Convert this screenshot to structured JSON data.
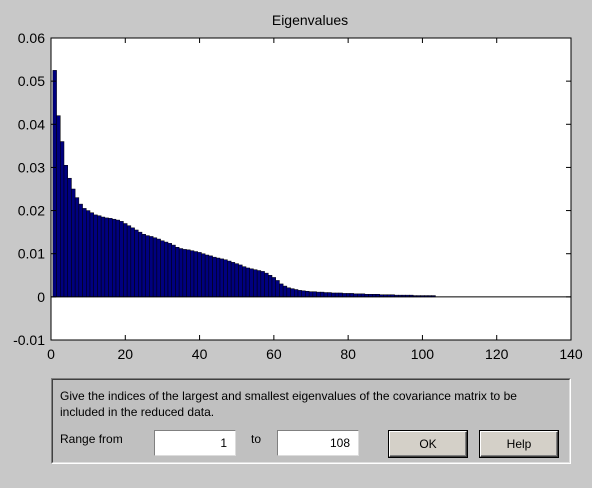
{
  "chart_data": {
    "type": "bar",
    "title": "Eigenvalues",
    "xlabel": "",
    "ylabel": "",
    "xlim": [
      0,
      140
    ],
    "ylim": [
      -0.01,
      0.06
    ],
    "xticks": [
      "0",
      "20",
      "40",
      "60",
      "80",
      "100",
      "120",
      "140"
    ],
    "yticks": [
      "-0.01",
      "0",
      "0.01",
      "0.02",
      "0.03",
      "0.04",
      "0.05",
      "0.06"
    ],
    "bar_color": "#00007f",
    "x": [
      1,
      2,
      3,
      4,
      5,
      6,
      7,
      8,
      9,
      10,
      11,
      12,
      13,
      14,
      15,
      16,
      17,
      18,
      19,
      20,
      21,
      22,
      23,
      24,
      25,
      26,
      27,
      28,
      29,
      30,
      31,
      32,
      33,
      34,
      35,
      36,
      37,
      38,
      39,
      40,
      41,
      42,
      43,
      44,
      45,
      46,
      47,
      48,
      49,
      50,
      51,
      52,
      53,
      54,
      55,
      56,
      57,
      58,
      59,
      60,
      61,
      62,
      63,
      64,
      65,
      66,
      67,
      68,
      69,
      70,
      71,
      72,
      73,
      74,
      75,
      76,
      77,
      78,
      79,
      80,
      81,
      82,
      83,
      84,
      85,
      86,
      87,
      88,
      89,
      90,
      91,
      92,
      93,
      94,
      95,
      96,
      97,
      98,
      99,
      100,
      101,
      102,
      103
    ],
    "values": [
      0.0525,
      0.042,
      0.036,
      0.0305,
      0.0275,
      0.025,
      0.023,
      0.0215,
      0.0205,
      0.02,
      0.0195,
      0.019,
      0.0188,
      0.0185,
      0.0183,
      0.0182,
      0.018,
      0.0178,
      0.0175,
      0.017,
      0.0165,
      0.016,
      0.0155,
      0.015,
      0.0145,
      0.0142,
      0.014,
      0.0137,
      0.0134,
      0.013,
      0.0127,
      0.0124,
      0.012,
      0.0115,
      0.0112,
      0.011,
      0.0109,
      0.0107,
      0.0105,
      0.0103,
      0.01,
      0.0097,
      0.0095,
      0.0092,
      0.009,
      0.0088,
      0.0086,
      0.0083,
      0.008,
      0.0077,
      0.0074,
      0.007,
      0.0067,
      0.0065,
      0.0063,
      0.0061,
      0.0059,
      0.0055,
      0.005,
      0.0045,
      0.0038,
      0.003,
      0.0025,
      0.0021,
      0.0019,
      0.0017,
      0.0015,
      0.0014,
      0.0013,
      0.0012,
      0.0012,
      0.0011,
      0.0011,
      0.001,
      0.001,
      0.0009,
      0.0009,
      0.0009,
      0.0008,
      0.0008,
      0.0008,
      0.0007,
      0.0007,
      0.0007,
      0.0006,
      0.0006,
      0.0006,
      0.0006,
      0.0005,
      0.0005,
      0.0005,
      0.0005,
      0.0004,
      0.0004,
      0.0004,
      0.0004,
      0.0004,
      0.0003,
      0.0003,
      0.0003,
      0.0003,
      0.0003,
      0.0003
    ]
  },
  "dialog": {
    "instructions": "Give the indices of the largest and smallest eigenvalues of the covariance matrix to be included in the reduced data.",
    "range_from_label": "Range from",
    "range_from_value": "1",
    "to_label": "to",
    "range_to_value": "108",
    "ok_label": "OK",
    "help_label": "Help"
  }
}
